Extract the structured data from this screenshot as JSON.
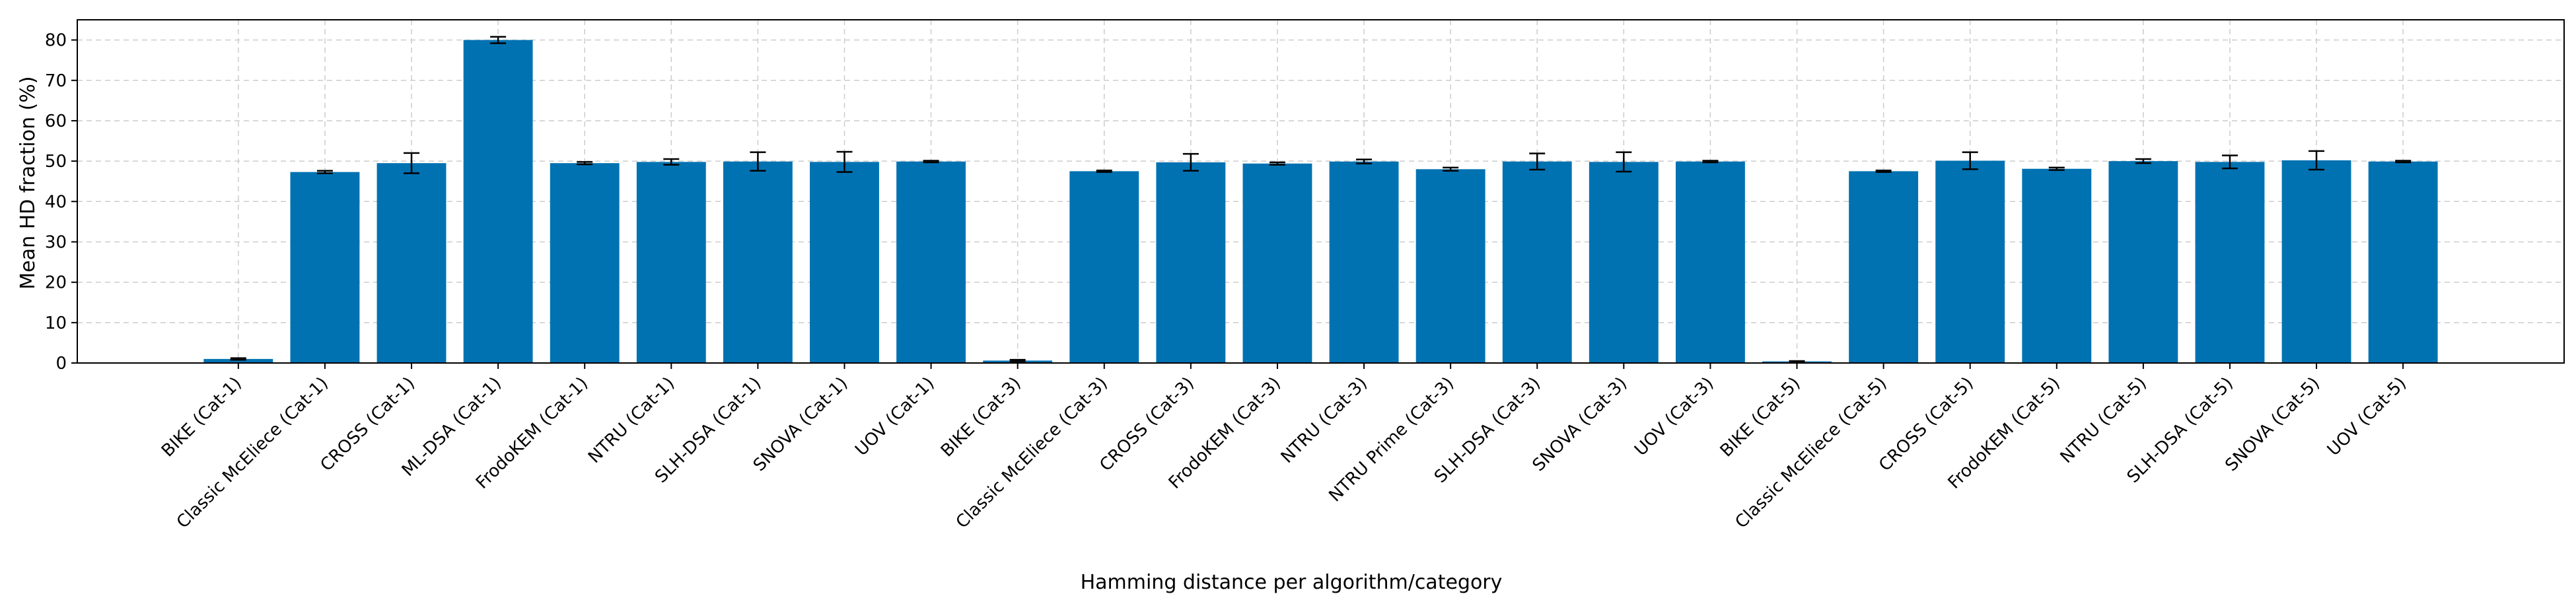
{
  "chart_data": {
    "type": "bar",
    "title": "",
    "xlabel": "Hamming distance per algorithm/category",
    "ylabel": "Mean HD fraction (%)",
    "ylim": [
      0,
      85
    ],
    "yticks": [
      0,
      10,
      20,
      30,
      40,
      50,
      60,
      70,
      80
    ],
    "grid": true,
    "bar_color": "#0072b2",
    "error_bar_color": "#000000",
    "grid_color": "#cccccc",
    "categories": [
      "BIKE (Cat-1)",
      "Classic McEliece (Cat-1)",
      "CROSS (Cat-1)",
      "ML-DSA (Cat-1)",
      "FrodoKEM (Cat-1)",
      "NTRU (Cat-1)",
      "SLH-DSA (Cat-1)",
      "SNOVA (Cat-1)",
      "UOV (Cat-1)",
      "BIKE (Cat-3)",
      "Classic McEliece (Cat-3)",
      "CROSS (Cat-3)",
      "FrodoKEM (Cat-3)",
      "NTRU (Cat-3)",
      "NTRU Prime (Cat-3)",
      "SLH-DSA (Cat-3)",
      "SNOVA (Cat-3)",
      "UOV (Cat-3)",
      "BIKE (Cat-5)",
      "Classic McEliece (Cat-5)",
      "CROSS (Cat-5)",
      "FrodoKEM (Cat-5)",
      "NTRU (Cat-5)",
      "SLH-DSA (Cat-5)",
      "SNOVA (Cat-5)",
      "UOV (Cat-5)"
    ],
    "values": [
      1.0,
      47.3,
      49.5,
      80.0,
      49.5,
      49.8,
      49.9,
      49.8,
      49.9,
      0.6,
      47.5,
      49.7,
      49.4,
      49.9,
      48.0,
      49.9,
      49.8,
      49.9,
      0.4,
      47.5,
      50.1,
      48.1,
      50.0,
      49.8,
      50.2,
      49.9
    ],
    "errors": [
      0.2,
      0.3,
      2.5,
      0.8,
      0.3,
      0.7,
      2.3,
      2.5,
      0.2,
      0.2,
      0.2,
      2.1,
      0.3,
      0.5,
      0.4,
      2.0,
      2.4,
      0.2,
      0.1,
      0.2,
      2.1,
      0.3,
      0.5,
      1.6,
      2.3,
      0.2
    ]
  }
}
